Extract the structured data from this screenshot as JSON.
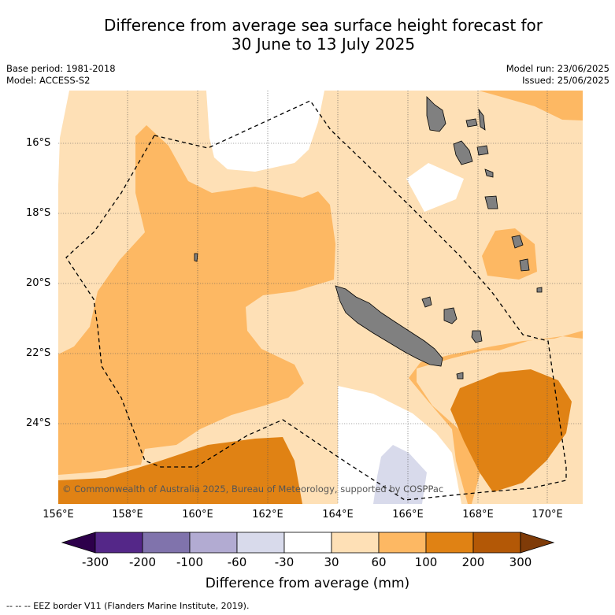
{
  "title": {
    "line1": "Difference from average sea surface height forecast for",
    "line2": "30 June to 13 July 2025"
  },
  "meta": {
    "base_period": "Base period: 1981-2018",
    "model": "Model: ACCESS-S2",
    "model_run": "Model run: 23/06/2025",
    "issued": "Issued: 25/06/2025"
  },
  "map": {
    "lat_labels": [
      "16°S",
      "18°S",
      "20°S",
      "22°S",
      "24°S"
    ],
    "lon_labels": [
      "156°E",
      "158°E",
      "160°E",
      "162°E",
      "164°E",
      "166°E",
      "168°E",
      "170°E"
    ],
    "copyright": "© Commonwealth of Australia 2025, Bureau of Meteorology, supported by COSPPac",
    "land_color": "#808080",
    "eez_style": "dashed"
  },
  "legend": {
    "label": "Difference from average (mm)",
    "ticks": [
      "-300",
      "-200",
      "-100",
      "-60",
      "-30",
      "30",
      "60",
      "100",
      "200",
      "300"
    ],
    "colors": {
      "below_-300": "#2d004b",
      "-300_-200": "#542788",
      "-200_-100": "#8073ac",
      "-100_-60": "#b2abd2",
      "-60_-30": "#d8daeb",
      "-30_30": "#ffffff",
      "30_60": "#fee0b6",
      "60_100": "#fdb863",
      "100_200": "#e08214",
      "200_300": "#b35806",
      "above_300": "#7f3b08"
    }
  },
  "footer": "--  --  -- EEZ border V11 (Flanders Marine Institute, 2019)."
}
